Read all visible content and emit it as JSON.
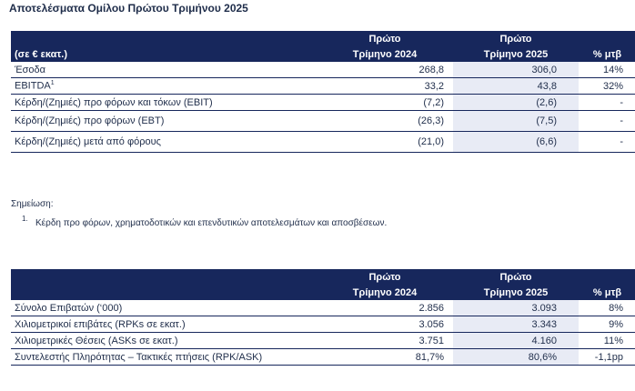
{
  "title": "Αποτελέσματα Ομίλου Πρώτου Τριμήνου 2025",
  "table1": {
    "header_label": "(σε € εκατ.)",
    "col1_top": "Πρώτο",
    "col1_bottom": "Τρίμηνο 2024",
    "col2_top": "Πρώτο",
    "col2_bottom": "Τρίμηνο 2025",
    "col3": "% μτβ",
    "rows": [
      {
        "label": "Έσοδα",
        "v2024": "268,8",
        "v2025": "306,0",
        "yoy": "14%"
      },
      {
        "label": "EBITDA",
        "sup": "1",
        "v2024": "33,2",
        "v2025": "43,8",
        "yoy": "32%"
      },
      {
        "label": "Κέρδη/(Ζημιές) προ φόρων και τόκων (EBIT)",
        "v2024": "(7,2)",
        "v2025": "(2,6)",
        "yoy": "-"
      },
      {
        "label": "Κέρδη/(Ζημιές) προ φόρων (EBT)",
        "v2024": "(26,3)",
        "v2025": "(7,5)",
        "yoy": "-"
      },
      {
        "label": "Κέρδη/(Ζημιές) μετά από φόρους",
        "v2024": "(21,0)",
        "v2025": "(6,6)",
        "yoy": "-"
      }
    ]
  },
  "note": {
    "label": "Σημείωση:",
    "number": "1.",
    "text": "Κέρδη προ φόρων, χρηματοδοτικών και επενδυτικών αποτελεσμάτων και αποσβέσεων."
  },
  "table2": {
    "col1_top": "Πρώτο",
    "col1_bottom": "Τρίμηνο 2024",
    "col2_top": "Πρώτο",
    "col2_bottom": "Τρίμηνο 2025",
    "col3": "% μτβ",
    "rows": [
      {
        "label": "Σύνολο Επιβατών (‘000)",
        "v2024": "2.856",
        "v2025": "3.093",
        "yoy": "8%"
      },
      {
        "label": "Χιλιομετρικοί επιβάτες (RPKs σε εκατ.)",
        "v2024": "3.056",
        "v2025": "3.343",
        "yoy": "9%"
      },
      {
        "label": "Χιλιομετρικές Θέσεις (ASKs σε εκατ.)",
        "v2024": "3.751",
        "v2025": "4.160",
        "yoy": "11%"
      },
      {
        "label": "Συντελεστής Πληρότητας – Τακτικές πτήσεις (RPK/ASK)",
        "v2024": "81,7%",
        "v2025": "80,6%",
        "yoy": "-1,1pp"
      }
    ]
  }
}
